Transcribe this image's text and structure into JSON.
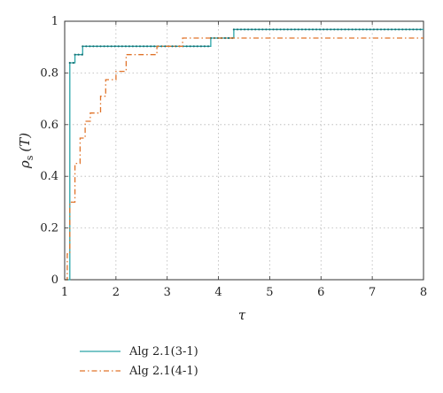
{
  "chart_data": {
    "type": "line",
    "xlabel": "τ",
    "ylabel_main": "ρ",
    "ylabel_sub": "s",
    "ylabel_arg": "(T)",
    "xlim": [
      1,
      8
    ],
    "ylim": [
      0,
      1
    ],
    "x_ticks": [
      "1",
      "2",
      "3",
      "4",
      "5",
      "6",
      "7",
      "8"
    ],
    "y_ticks": [
      "0",
      "0.2",
      "0.4",
      "0.6",
      "0.8",
      "1"
    ],
    "grid": true,
    "legend_position": "below-left",
    "series": [
      {
        "name": "Alg 2.1(3-1)",
        "color": "#2aa5a8",
        "style": "solid-with-dot-markers",
        "x": [
          1.0,
          1.1,
          1.2,
          1.35,
          3.85,
          4.3,
          8.0
        ],
        "y": [
          0.0,
          0.839,
          0.871,
          0.903,
          0.935,
          0.968,
          0.968
        ]
      },
      {
        "name": "Alg 2.1(4-1)",
        "color": "#e0732a",
        "style": "dash-dot",
        "x": [
          1.0,
          1.05,
          1.1,
          1.2,
          1.3,
          1.4,
          1.5,
          1.7,
          1.8,
          2.0,
          2.2,
          2.6,
          2.8,
          3.3,
          4.2,
          8.0
        ],
        "y": [
          0.0,
          0.1,
          0.3,
          0.45,
          0.548,
          0.613,
          0.645,
          0.71,
          0.774,
          0.806,
          0.871,
          0.871,
          0.903,
          0.935,
          0.935,
          0.935
        ]
      }
    ]
  }
}
